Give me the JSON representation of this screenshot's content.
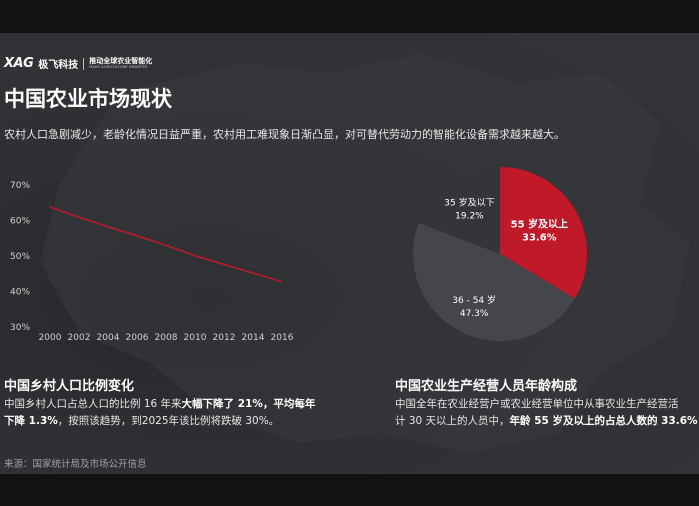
{
  "brand": {
    "logo": "XAG",
    "name": "极飞科技",
    "slogan_cn": "推动全球农业智能化",
    "slogan_en": "MAKE AGRICULTURE SMARTER"
  },
  "page": {
    "title": "中国农业市场现状",
    "intro": "农村人口急剧减少，老龄化情况日益严重，农村用工难现象日渐凸显，对可替代劳动力的智能化设备需求越来越大。"
  },
  "colors": {
    "accent": "#c0192a",
    "pie_dark": "#34353b",
    "pie_mid": "#45464c"
  },
  "chart_data": [
    {
      "type": "line",
      "x": [
        2000,
        2002,
        2004,
        2006,
        2008,
        2010,
        2012,
        2014,
        2016
      ],
      "series": [
        {
          "values": [
            63.8,
            60.9,
            58.2,
            55.7,
            53.0,
            50.1,
            47.6,
            45.2,
            42.7
          ]
        }
      ],
      "yticks": [
        "70%",
        "60%",
        "50%",
        "40%",
        "30%"
      ],
      "ylim": [
        30,
        70
      ],
      "grid": false
    },
    {
      "type": "pie",
      "slices": [
        {
          "label": "55 岁及以上",
          "percent_label": "33.6%",
          "value": 33.6
        },
        {
          "label": "36 - 54 岁",
          "percent_label": "47.3%",
          "value": 47.3
        },
        {
          "label": "35 岁及以下",
          "percent_label": "19.2%",
          "value": 19.2
        }
      ]
    }
  ],
  "section_left": {
    "title": "中国乡村人口比例变化",
    "line1_a": "中国乡村人口占总人口的比例  16  年来",
    "line1_b": "大幅下降了  21%，平均每年",
    "line2_a": "下降 1.3%",
    "line2_b": "，按照该趋势，到2025年该比例将跌破 30%。"
  },
  "section_right": {
    "title": "中国农业生产经营人员年龄构成",
    "line1": "中国全年在农业经营户或农业经营单位中从事农业生产经营活",
    "line2_a": "计 30 天以上的人员中，",
    "line2_b": "年龄 55 岁及以上的占总人数的 33.6%"
  },
  "source": "来源：国家统计局及市场公开信息"
}
